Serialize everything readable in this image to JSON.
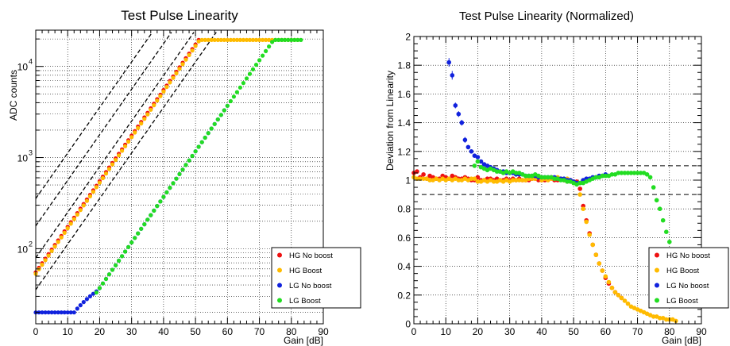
{
  "chart_data": [
    {
      "type": "scatter",
      "title": "Test Pulse Linearity",
      "xlabel": "Gain [dB]",
      "ylabel": "ADC counts",
      "xlim": [
        0,
        90
      ],
      "ylim": [
        15,
        25000
      ],
      "yscale": "log",
      "grid": true,
      "legend_position": "bottom-right",
      "x_ticks": [
        "0",
        "10",
        "20",
        "30",
        "40",
        "50",
        "60",
        "70",
        "80",
        "90"
      ],
      "y_ticks": [
        {
          "value": 100,
          "label": "10",
          "exp": "2"
        },
        {
          "value": 1000,
          "label": "10",
          "exp": "3"
        },
        {
          "value": 10000,
          "label": "10",
          "exp": "4"
        }
      ],
      "series": [
        {
          "name": "HG No boost",
          "color": "#ee1111",
          "x0": 0,
          "x1": 51,
          "step": 1,
          "y_at_0": 55,
          "slope_db": 20,
          "saturation": 19500
        },
        {
          "name": "HG Boost",
          "color": "#ffbb00",
          "x0": 0,
          "x1": 82,
          "step": 1,
          "y_at_0": 53,
          "slope_db": 20,
          "saturation": 19500
        },
        {
          "name": "LG No boost",
          "color": "#1122dd",
          "x0": 0,
          "x1": 60,
          "step": 1,
          "y_at_20": 37,
          "floor": 20,
          "slope_db": 20,
          "saturation": 19500
        },
        {
          "name": "LG Boost",
          "color": "#22dd22",
          "x0": 19,
          "x1": 83,
          "step": 1,
          "y_at_20": 37,
          "slope_db": 20,
          "saturation": 19500
        }
      ],
      "reference_lines": {
        "color": "#000000",
        "style": "dashed",
        "count": 8
      }
    },
    {
      "type": "scatter",
      "title": "Test Pulse Linearity (Normalized)",
      "xlabel": "Gain [dB]",
      "ylabel": "Deviation from Linearity",
      "xlim": [
        0,
        90
      ],
      "ylim": [
        0,
        2
      ],
      "grid": true,
      "legend_position": "bottom-right",
      "x_ticks": [
        "0",
        "10",
        "20",
        "30",
        "40",
        "50",
        "60",
        "70",
        "80",
        "90"
      ],
      "y_ticks": [
        "0",
        "0.2",
        "0.4",
        "0.6",
        "0.8",
        "1",
        "1.2",
        "1.4",
        "1.6",
        "1.8",
        "2"
      ],
      "reference_lines": [
        0.9,
        1.1
      ],
      "series": [
        {
          "name": "HG No boost",
          "color": "#ee1111",
          "x": [
            0,
            1,
            2,
            3,
            4,
            5,
            6,
            7,
            8,
            9,
            10,
            11,
            12,
            13,
            14,
            15,
            16,
            17,
            18,
            19,
            20,
            21,
            22,
            23,
            24,
            25,
            26,
            27,
            28,
            29,
            30,
            31,
            32,
            33,
            34,
            35,
            36,
            37,
            38,
            39,
            40,
            41,
            42,
            43,
            44,
            45,
            46,
            47,
            48,
            49,
            50,
            51,
            52,
            53,
            54,
            55,
            56,
            57,
            58,
            59,
            60,
            61,
            62,
            63,
            64,
            65
          ],
          "y": [
            1.05,
            1.06,
            1.02,
            1.04,
            1.01,
            1.03,
            1.02,
            1.01,
            1.01,
            1.03,
            1.02,
            1.01,
            1.03,
            1.02,
            1.01,
            1.01,
            1.02,
            1.01,
            1,
            1,
            1.02,
            1,
            1,
            1.01,
            1.01,
            1,
            1.01,
            1,
            1,
            1.01,
            1,
            1.01,
            1,
            1.01,
            1,
            1,
            1,
            1.01,
            1.01,
            1,
            1,
            1,
            1.01,
            1.02,
            1,
            1,
            1.01,
            1,
            0.99,
            1,
            0.99,
            0.99,
            0.94,
            0.82,
            0.72,
            0.63,
            0.55,
            0.48,
            0.42,
            0.37,
            0.32,
            0.28,
            0.25,
            0.22,
            0.2,
            0.18
          ]
        },
        {
          "name": "HG Boost",
          "color": "#ffbb00",
          "x": [
            0,
            1,
            2,
            3,
            4,
            5,
            6,
            7,
            8,
            9,
            10,
            11,
            12,
            13,
            14,
            15,
            16,
            17,
            18,
            19,
            20,
            21,
            22,
            23,
            24,
            25,
            26,
            27,
            28,
            29,
            30,
            31,
            32,
            33,
            34,
            35,
            36,
            37,
            38,
            39,
            40,
            41,
            42,
            43,
            44,
            45,
            46,
            47,
            48,
            49,
            50,
            51,
            52,
            53,
            54,
            55,
            56,
            57,
            58,
            59,
            60,
            61,
            62,
            63,
            64,
            65,
            66,
            67,
            68,
            69,
            70,
            71,
            72,
            73,
            74,
            75,
            76,
            77,
            78,
            79,
            80,
            81,
            82
          ],
          "y": [
            1.02,
            1.01,
            1.01,
            1.01,
            1.01,
            1,
            1,
            1.01,
            1,
            1.01,
            1,
            1.01,
            1,
            1.01,
            1,
            1,
            1.01,
            1,
            1.01,
            1.01,
            0.99,
            0.99,
            1,
            0.99,
            1,
            0.99,
            0.99,
            1,
            0.99,
            1,
            0.99,
            1,
            1,
            1,
            1,
            1,
            1.01,
            1.01,
            1.01,
            1.02,
            1,
            1.01,
            1,
            1.01,
            1.01,
            1.02,
            1.01,
            1,
            1.01,
            0.99,
            0.98,
            0.98,
            0.9,
            0.8,
            0.71,
            0.62,
            0.55,
            0.48,
            0.42,
            0.37,
            0.33,
            0.29,
            0.25,
            0.22,
            0.2,
            0.18,
            0.16,
            0.14,
            0.12,
            0.11,
            0.1,
            0.09,
            0.08,
            0.07,
            0.06,
            0.05,
            0.05,
            0.04,
            0.04,
            0.03,
            0.03,
            0.03,
            0.02
          ]
        },
        {
          "name": "LG No boost",
          "color": "#1122dd",
          "x": [
            11,
            12,
            13,
            14,
            15,
            16,
            17,
            18,
            19,
            20,
            21,
            22,
            23,
            24,
            25,
            26,
            27,
            28,
            29,
            30,
            31,
            32,
            33,
            34,
            35,
            36,
            37,
            38,
            39,
            40,
            41,
            42,
            43,
            44,
            45,
            46,
            47,
            48,
            49,
            50,
            51,
            52,
            53,
            54,
            55,
            56,
            57,
            58,
            59,
            60
          ],
          "y": [
            1.82,
            1.73,
            1.52,
            1.46,
            1.4,
            1.28,
            1.23,
            1.2,
            1.17,
            1.16,
            1.13,
            1.11,
            1.1,
            1.09,
            1.08,
            1.07,
            1.06,
            1.06,
            1.05,
            1.05,
            1.05,
            1.04,
            1.04,
            1.04,
            1.03,
            1.03,
            1.03,
            1.03,
            1.02,
            1.02,
            1.02,
            1.02,
            1.02,
            1.02,
            1.01,
            1.01,
            1.01,
            1,
            1,
            0.99,
            0.98,
            0.98,
            1,
            1.01,
            1.01,
            1.02,
            1.02,
            1.03,
            1.03,
            1.04
          ],
          "error": [
            0.03,
            0.03,
            0.02,
            0.02,
            0.02,
            0.02,
            0.015,
            0.01,
            0.01,
            0.01,
            0.01,
            0.01,
            0,
            0,
            0,
            0,
            0,
            0,
            0,
            0,
            0,
            0,
            0,
            0,
            0,
            0,
            0,
            0,
            0,
            0,
            0,
            0,
            0,
            0,
            0,
            0,
            0,
            0,
            0,
            0,
            0,
            0,
            0,
            0,
            0,
            0,
            0,
            0,
            0,
            0
          ]
        },
        {
          "name": "LG Boost",
          "color": "#22dd22",
          "x": [
            19,
            20,
            21,
            22,
            23,
            24,
            25,
            26,
            27,
            28,
            29,
            30,
            31,
            32,
            33,
            34,
            35,
            36,
            37,
            38,
            39,
            40,
            41,
            42,
            43,
            44,
            45,
            46,
            47,
            48,
            49,
            50,
            51,
            52,
            53,
            54,
            55,
            56,
            57,
            58,
            59,
            60,
            61,
            62,
            63,
            64,
            65,
            66,
            67,
            68,
            69,
            70,
            71,
            72,
            73,
            74,
            75,
            76,
            77,
            78,
            79,
            80,
            81,
            82,
            83
          ],
          "y": [
            1.1,
            1.13,
            1.09,
            1.08,
            1.07,
            1.08,
            1.07,
            1.06,
            1.06,
            1.05,
            1.06,
            1.05,
            1.06,
            1.05,
            1.05,
            1.04,
            1.03,
            1.03,
            1.03,
            1.04,
            1.03,
            1.02,
            1.02,
            1.02,
            1.02,
            1.01,
            1.01,
            1,
            1,
            0.99,
            0.99,
            0.98,
            0.97,
            0.98,
            0.98,
            0.99,
            1,
            1.01,
            1.02,
            1.02,
            1.03,
            1.03,
            1.03,
            1.04,
            1.04,
            1.05,
            1.05,
            1.05,
            1.05,
            1.05,
            1.05,
            1.05,
            1.05,
            1.05,
            1.04,
            1.02,
            0.95,
            0.86,
            0.8,
            0.72,
            0.64,
            0.57,
            0.51,
            0.46,
            0.41
          ]
        }
      ]
    }
  ]
}
